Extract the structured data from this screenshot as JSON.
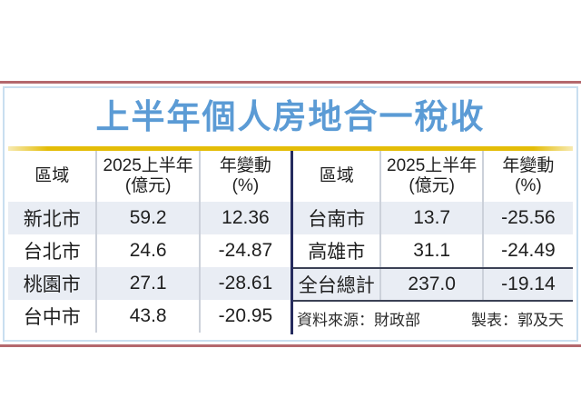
{
  "title": "上半年個人房地合一稅收",
  "table_headers": {
    "region": "區域",
    "amount_top": "2025上半年",
    "amount_bottom": "(億元)",
    "change_top": "年變動",
    "change_bottom": "(%)"
  },
  "left_table": {
    "rows": [
      {
        "region": "新北市",
        "amount": "59.2",
        "change": "12.36"
      },
      {
        "region": "台北市",
        "amount": "24.6",
        "change": "-24.87"
      },
      {
        "region": "桃園市",
        "amount": "27.1",
        "change": "-28.61"
      },
      {
        "region": "台中市",
        "amount": "43.8",
        "change": "-20.95"
      }
    ]
  },
  "right_table": {
    "rows": [
      {
        "region": "台南市",
        "amount": "13.7",
        "change": "-25.56"
      },
      {
        "region": "高雄市",
        "amount": "31.1",
        "change": "-24.49"
      }
    ],
    "total_row": {
      "region": "全台總計",
      "amount": "237.0",
      "change": "-19.14"
    },
    "source": "資料來源：財政部",
    "credit": "製表：郭及天"
  },
  "colors": {
    "title_blue": "#5b9bd5",
    "gold_rule": "#e4bd07",
    "outer_red_rule": "#b4686d",
    "card_border_blue": "#c9dff0",
    "row_shade": "#e9edf4",
    "center_divider_navy": "#252b5e",
    "column_divider_gray": "#ccd1da",
    "total_row_border": "#3b4155"
  },
  "chart_data": {
    "type": "table",
    "title": "上半年個人房地合一稅收",
    "columns": [
      "區域",
      "2025上半年(億元)",
      "年變動(%)"
    ],
    "rows": [
      [
        "新北市",
        59.2,
        12.36
      ],
      [
        "台北市",
        24.6,
        -24.87
      ],
      [
        "桃園市",
        27.1,
        -28.61
      ],
      [
        "台中市",
        43.8,
        -20.95
      ],
      [
        "台南市",
        13.7,
        -25.56
      ],
      [
        "高雄市",
        31.1,
        -24.49
      ],
      [
        "全台總計",
        237.0,
        -19.14
      ]
    ],
    "source": "資料來源：財政部",
    "credit": "製表：郭及天",
    "layout": "two side-by-side tables split after 台中市; total row emphasized with dark borders"
  }
}
